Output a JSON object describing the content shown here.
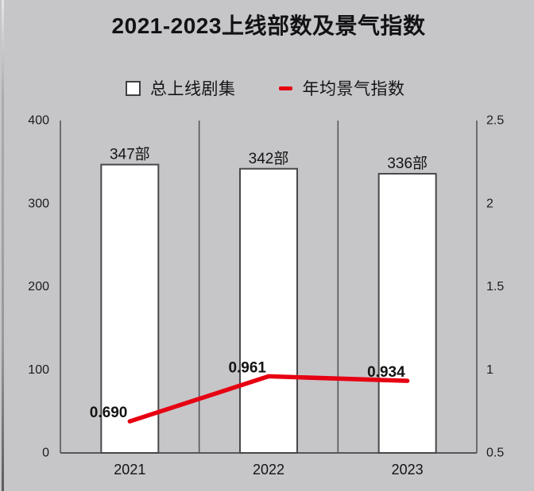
{
  "title": "2021-2023上线部数及景气指数",
  "legend": {
    "items": [
      {
        "swatch": "box",
        "label": "总上线剧集",
        "fill": "#ffffff",
        "border": "#3f3f41"
      },
      {
        "swatch": "line",
        "label": "年均景气指数",
        "color": "#e60012"
      }
    ]
  },
  "chart_data": {
    "type": "bar",
    "title": "2021-2023上线部数及景气指数",
    "categories": [
      "2021",
      "2022",
      "2023"
    ],
    "series": [
      {
        "name": "总上线剧集",
        "type": "bar",
        "axis": "left",
        "values": [
          347,
          342,
          336
        ],
        "value_labels": [
          "347部",
          "342部",
          "336部"
        ],
        "fill": "#ffffff",
        "stroke": "#48484a"
      },
      {
        "name": "年均景气指数",
        "type": "line",
        "axis": "right",
        "values": [
          0.69,
          0.961,
          0.934
        ],
        "value_labels": [
          "0.690",
          "0.961",
          "0.934"
        ],
        "color": "#e60012"
      }
    ],
    "left_axis": {
      "min": 0,
      "max": 400,
      "tick_labels": [
        "400",
        "300",
        "200",
        "100",
        "0"
      ]
    },
    "right_axis": {
      "min": 0.5,
      "max": 2.5,
      "tick_labels": [
        "2.5",
        "2",
        "1.5",
        "1",
        "0.5"
      ]
    },
    "grid": "vertical category dividers",
    "legend_position": "top",
    "colors": {
      "background": "#c6c6c9",
      "axis": "#57575b",
      "text": "#141414"
    }
  }
}
